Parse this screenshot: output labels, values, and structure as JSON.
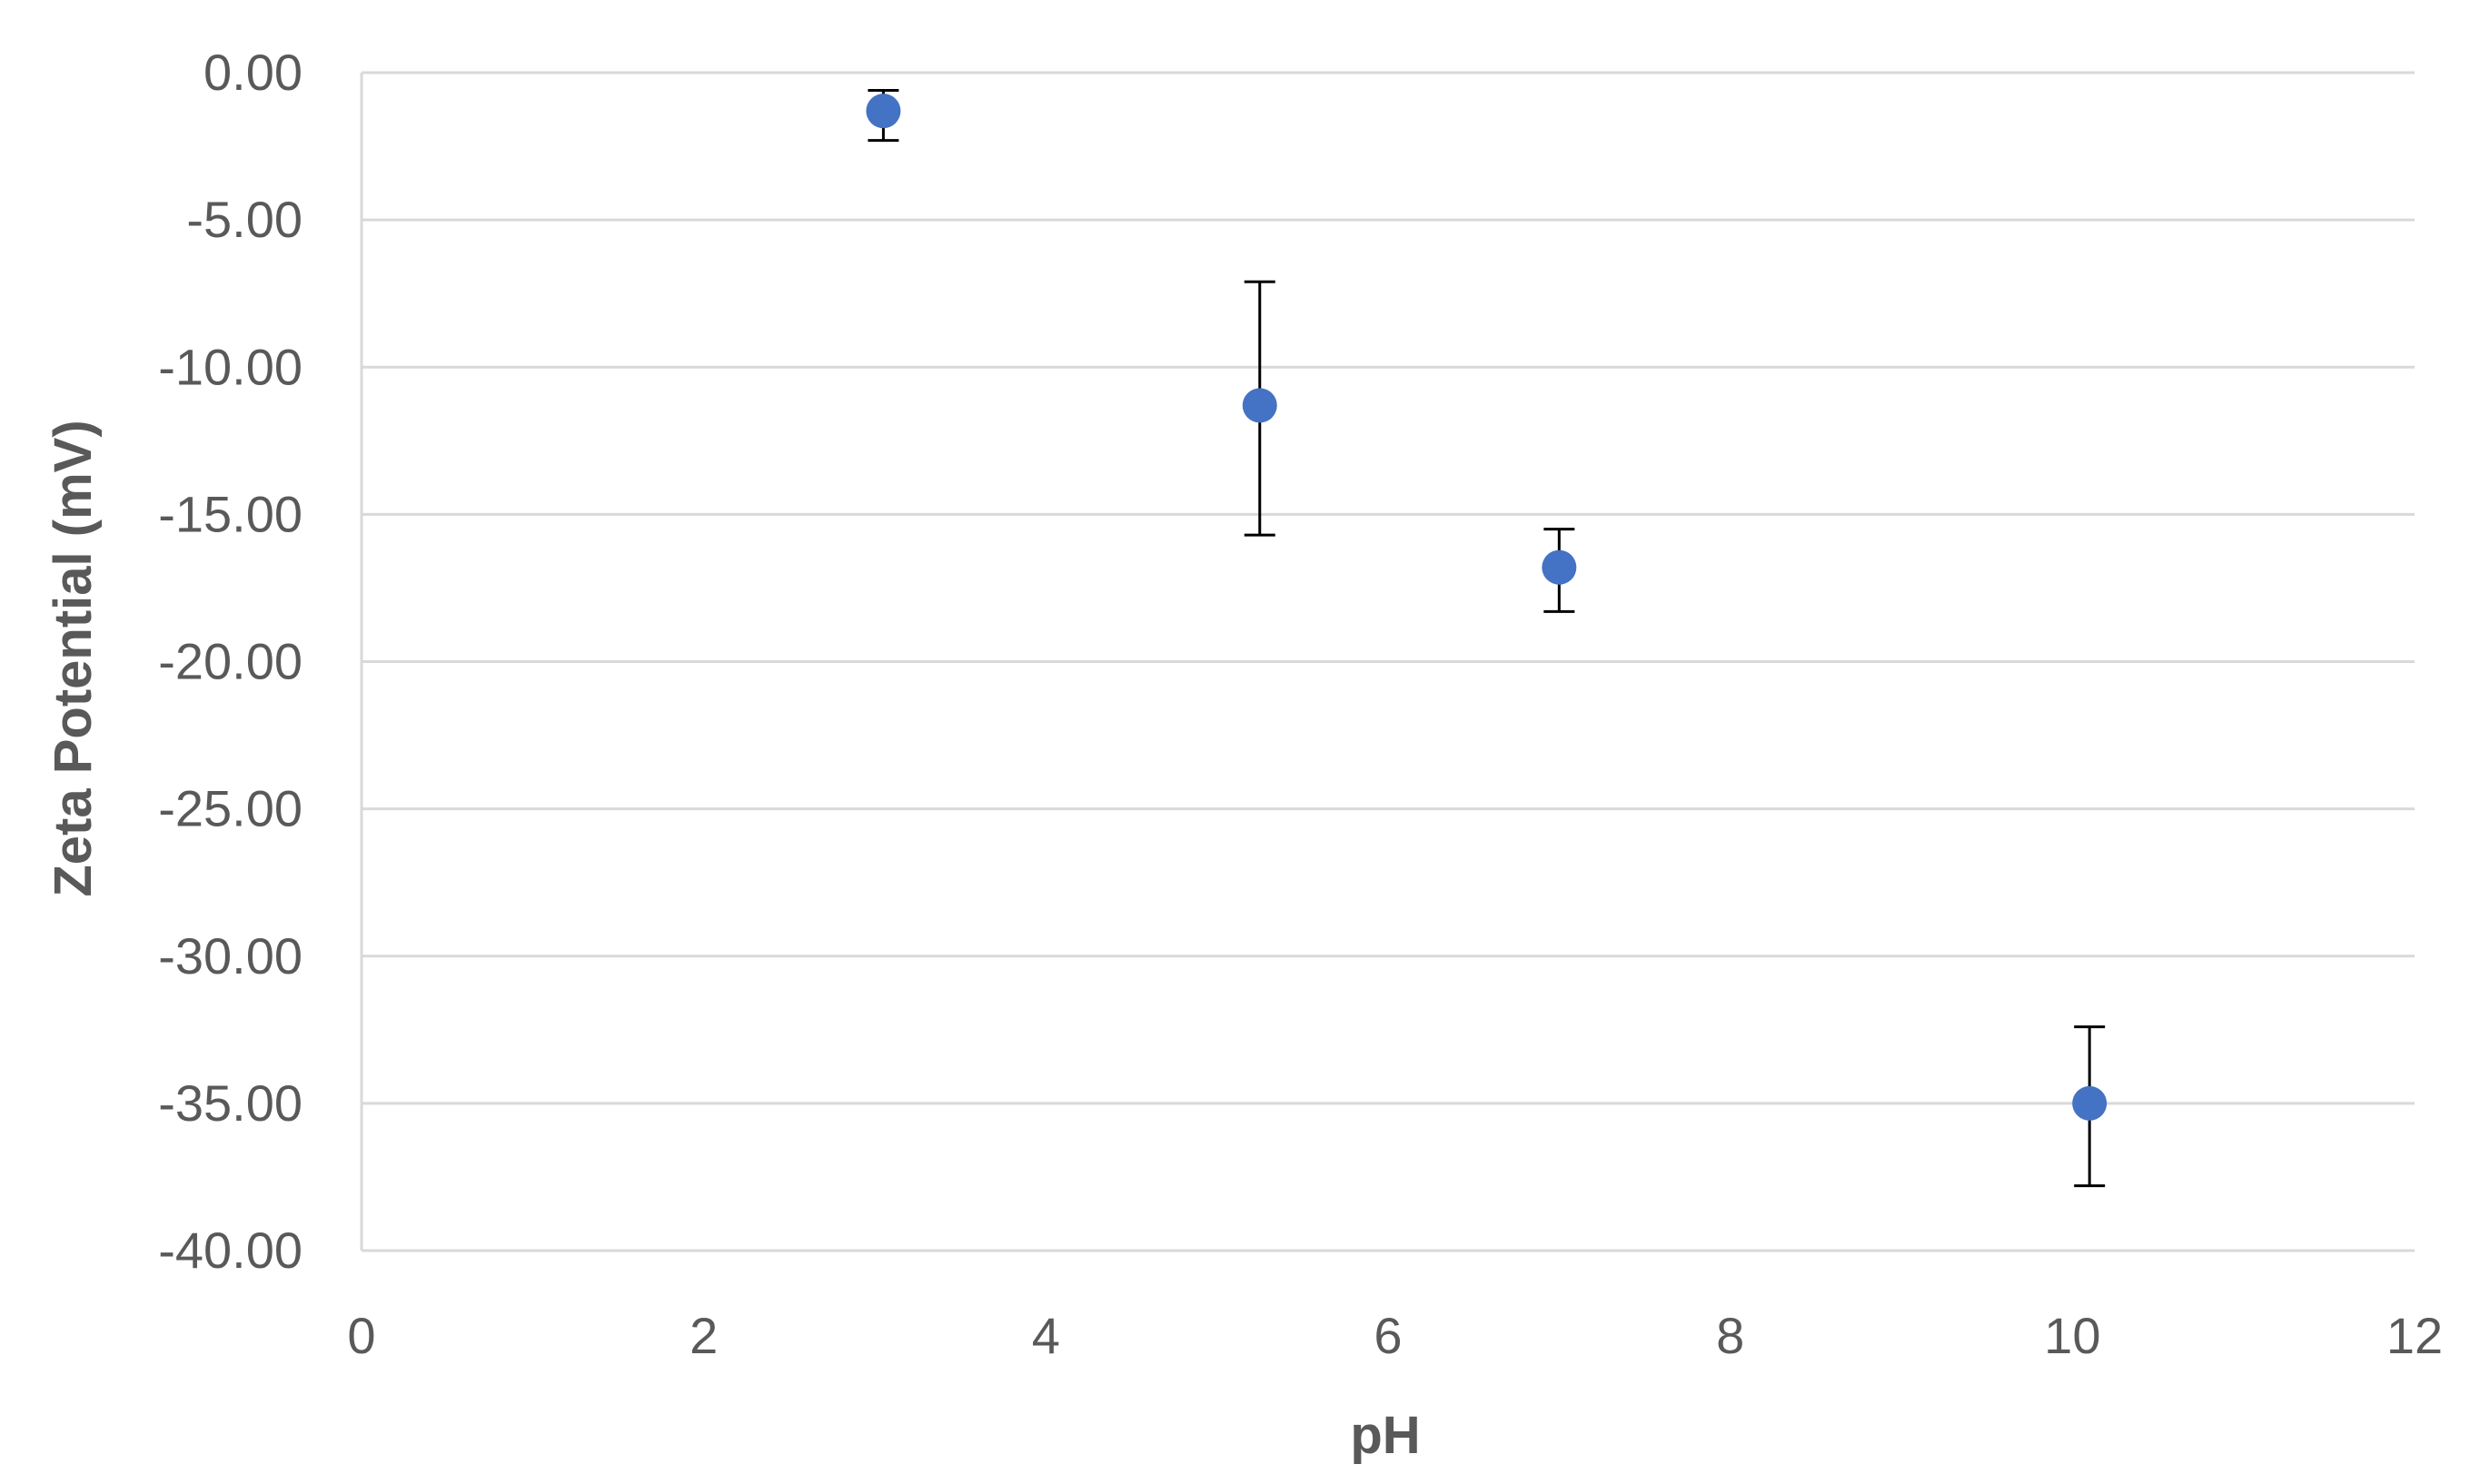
{
  "chart_data": {
    "type": "scatter",
    "title": "",
    "xlabel": "pH",
    "ylabel": "Zeta Potential (mV)",
    "xlim": [
      0,
      12
    ],
    "ylim": [
      -40,
      0
    ],
    "x_ticks": [
      "0",
      "2",
      "4",
      "6",
      "8",
      "10",
      "12"
    ],
    "y_ticks": [
      "0.00",
      "-5.00",
      "-10.00",
      "-15.00",
      "-20.00",
      "-25.00",
      "-30.00",
      "-35.00",
      "-40.00"
    ],
    "grid": "horizontal",
    "legend": "none",
    "marker_color": "#4472c4",
    "series": [
      {
        "points": [
          {
            "x": 3.05,
            "y": -1.3,
            "err_low": -2.3,
            "err_high": -0.6
          },
          {
            "x": 5.25,
            "y": -11.3,
            "err_low": -15.7,
            "err_high": -7.1
          },
          {
            "x": 7.0,
            "y": -16.8,
            "err_low": -18.3,
            "err_high": -15.5
          },
          {
            "x": 10.1,
            "y": -35.0,
            "err_low": -37.8,
            "err_high": -32.4
          }
        ]
      }
    ]
  }
}
